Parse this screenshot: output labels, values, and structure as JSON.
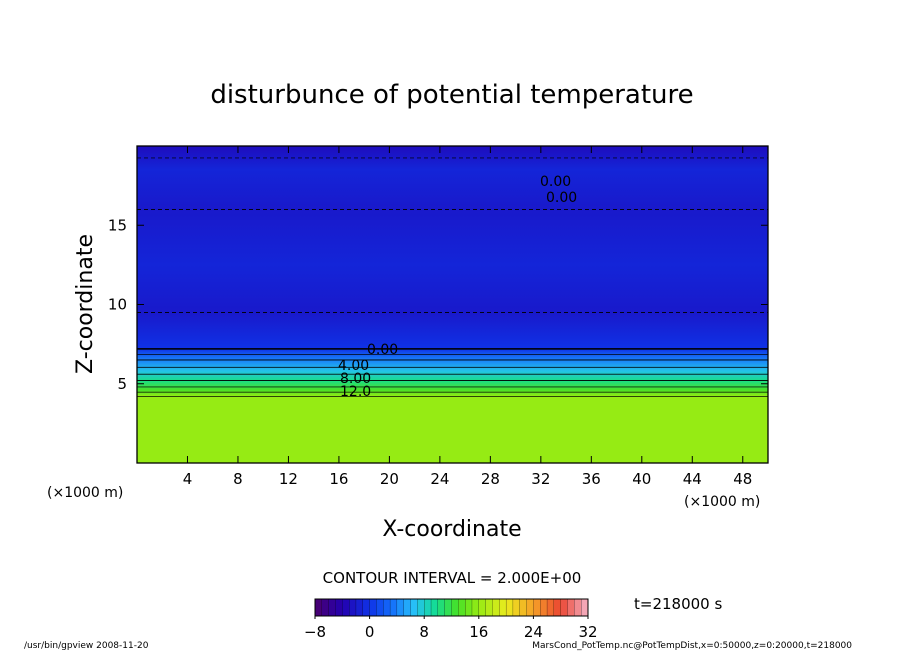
{
  "chart_data": {
    "type": "heatmap",
    "title": "disturbunce of potential temperature",
    "xlabel": "X-coordinate",
    "ylabel": "Z-coordinate",
    "x_unit": "(×1000 m)",
    "y_unit": "(×1000 m)",
    "xlim": [
      0,
      50
    ],
    "ylim": [
      0,
      20
    ],
    "x_ticks": [
      "4",
      "8",
      "12",
      "16",
      "20",
      "24",
      "28",
      "32",
      "36",
      "40",
      "44",
      "48"
    ],
    "y_ticks": [
      "5",
      "10",
      "15"
    ],
    "contour_labels": [
      "0.00",
      "0.00",
      "0.00",
      "4.00",
      "8.00",
      "12.0"
    ],
    "contour_interval_text": "CONTOUR INTERVAL = 2.000E+00",
    "time_text": "t=218000 s",
    "colorbar": {
      "range": [
        -8,
        32
      ],
      "tick_labels": [
        "−8",
        "0",
        "8",
        "16",
        "24",
        "32"
      ]
    },
    "profile": [
      {
        "z": 0,
        "value": 16
      },
      {
        "z": 4.2,
        "value": 16
      },
      {
        "z": 4.6,
        "value": 13
      },
      {
        "z": 5.2,
        "value": 10
      },
      {
        "z": 5.8,
        "value": 7
      },
      {
        "z": 6.5,
        "value": 4
      },
      {
        "z": 7.2,
        "value": 0
      },
      {
        "z": 9.5,
        "value": -2
      },
      {
        "z": 12.5,
        "value": -1
      },
      {
        "z": 16,
        "value": -2
      },
      {
        "z": 18.5,
        "value": -1
      },
      {
        "z": 20,
        "value": -3
      }
    ],
    "footer_left": "/usr/bin/gpview  2008-11-20",
    "footer_right": "MarsCond_PotTemp.nc@PotTempDist,x=0:50000,z=0:20000,t=218000"
  }
}
